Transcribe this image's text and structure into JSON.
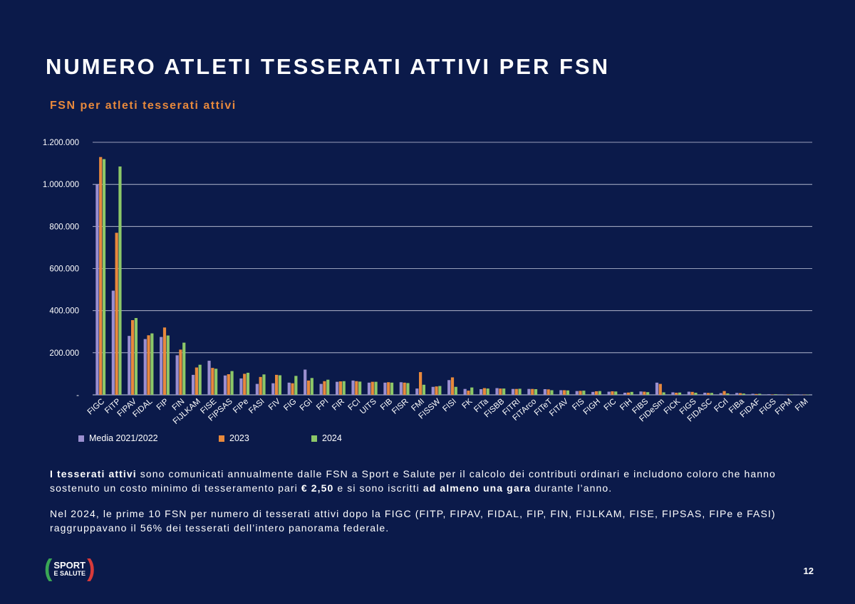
{
  "title": "NUMERO ATLETI TESSERATI ATTIVI PER FSN",
  "chart_data": {
    "type": "bar",
    "title": "FSN per atleti tesserati attivi",
    "xlabel": "",
    "ylabel": "",
    "ylim": [
      0,
      1200000
    ],
    "y_ticks": [
      {
        "value": 0,
        "label": "-"
      },
      {
        "value": 200000,
        "label": "200.000"
      },
      {
        "value": 400000,
        "label": "400.000"
      },
      {
        "value": 600000,
        "label": "600.000"
      },
      {
        "value": 800000,
        "label": "800.000"
      },
      {
        "value": 1000000,
        "label": "1.000.000"
      },
      {
        "value": 1200000,
        "label": "1.200.000"
      }
    ],
    "grid": true,
    "legend_position": "bottom-left",
    "categories": [
      "FIGC",
      "FITP",
      "FIPAV",
      "FIDAL",
      "FIP",
      "FIN",
      "FIJLKAM",
      "FISE",
      "FIPSAS",
      "FIPe",
      "FASI",
      "FIV",
      "FIG",
      "FGI",
      "FPI",
      "FIR",
      "FCI",
      "UITS",
      "FIB",
      "FISR",
      "FMI",
      "FISSW",
      "FISI",
      "FK",
      "FITa",
      "FISBB",
      "FITRI",
      "FITArco",
      "FITeT",
      "FITAV",
      "FIS",
      "FIGH",
      "FIC",
      "FIH",
      "FIBS",
      "FIDeSm",
      "FICK",
      "FIGS",
      "FIDASC",
      "FCrl",
      "FIBa",
      "FIDAF",
      "FIGS",
      "FIPM",
      "FIM"
    ],
    "series": [
      {
        "name": "Media 2021/2022",
        "color": "#9b8fd0",
        "values": [
          1000000,
          495000,
          280000,
          265000,
          275000,
          188000,
          95000,
          162000,
          92000,
          78000,
          52000,
          55000,
          58000,
          120000,
          52000,
          62000,
          68000,
          58000,
          58000,
          60000,
          30000,
          38000,
          70000,
          28000,
          27000,
          32000,
          28000,
          28000,
          27000,
          22000,
          18000,
          14000,
          15000,
          10000,
          16000,
          58000,
          12000,
          15000,
          10000,
          8000,
          9000,
          5000,
          3000,
          2000,
          1500
        ]
      },
      {
        "name": "2023",
        "color": "#e8893c",
        "values": [
          1130000,
          770000,
          355000,
          283000,
          320000,
          215000,
          130000,
          128000,
          98000,
          100000,
          85000,
          95000,
          55000,
          68000,
          65000,
          64000,
          65000,
          62000,
          60000,
          58000,
          108000,
          40000,
          83000,
          20000,
          32000,
          30000,
          28000,
          28000,
          26000,
          22000,
          19000,
          17000,
          17000,
          11000,
          15000,
          52000,
          10000,
          14000,
          9000,
          18000,
          8000,
          4000,
          2000,
          1500,
          1000
        ]
      },
      {
        "name": "2024",
        "color": "#8cc768",
        "values": [
          1120000,
          1085000,
          365000,
          292000,
          282000,
          248000,
          143000,
          124000,
          113000,
          105000,
          97000,
          93000,
          90000,
          80000,
          72000,
          65000,
          63000,
          62000,
          58000,
          56000,
          48000,
          42000,
          38000,
          35000,
          30000,
          30000,
          29000,
          27000,
          22000,
          21000,
          20000,
          18000,
          16000,
          14000,
          13000,
          12000,
          11000,
          10000,
          9000,
          7000,
          6000,
          5000,
          3000,
          2000,
          1500
        ]
      }
    ]
  },
  "legend": [
    {
      "label": "Media 2021/2022",
      "color": "#9b8fd0"
    },
    {
      "label": "2023",
      "color": "#e8893c"
    },
    {
      "label": "2024",
      "color": "#8cc768"
    }
  ],
  "paragraph1": {
    "bold1": "I tesserati attivi",
    "text1": " sono comunicati annualmente dalle FSN a Sport e Salute per il calcolo dei contributi ordinari e includono coloro che hanno sostenuto un costo minimo di tesseramento pari ",
    "bold2": "€ 2,50",
    "text2": " e si sono iscritti ",
    "bold3": "ad almeno una gara",
    "text3": " durante l’anno."
  },
  "paragraph2": "Nel 2024, le prime 10 FSN per numero di tesserati attivi dopo la FIGC (FITP, FIPAV, FIDAL, FIP, FIN, FIJLKAM, FISE, FIPSAS, FIPe e FASI) raggruppavano il 56% dei tesserati dell’intero panorama federale.",
  "logo": {
    "line1": "SPORT",
    "line2": "E SALUTE"
  },
  "page_number": "12",
  "colors": {
    "background": "#0b1a4a",
    "accent": "#e8893c",
    "grid": "#c9cde0"
  }
}
